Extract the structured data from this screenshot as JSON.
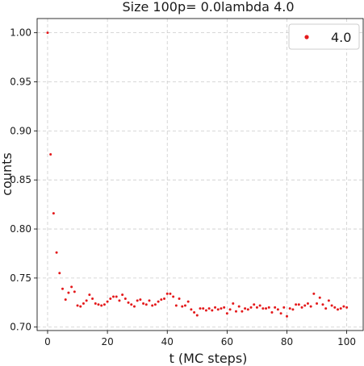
{
  "chart_data": {
    "type": "scatter",
    "title": "Size 100p= 0.0lambda 4.0",
    "xlabel": "t (MC steps)",
    "ylabel": "counts",
    "xlim": [
      -3.5,
      105.5
    ],
    "ylim": [
      0.6965,
      1.0145
    ],
    "xticks": [
      0,
      20,
      40,
      60,
      80,
      100
    ],
    "yticks": [
      0.7,
      0.75,
      0.8,
      0.85,
      0.9,
      0.95,
      1.0
    ],
    "ytick_labels": [
      "0.70",
      "0.75",
      "0.80",
      "0.85",
      "0.90",
      "0.95",
      "1.00"
    ],
    "grid": true,
    "legend": {
      "position": "top-right"
    },
    "series": [
      {
        "name": "4.0",
        "color": "#e41a1c",
        "x": [
          0,
          1,
          2,
          3,
          4,
          5,
          6,
          7,
          8,
          9,
          10,
          11,
          12,
          13,
          14,
          15,
          16,
          17,
          18,
          19,
          20,
          21,
          22,
          23,
          24,
          25,
          26,
          27,
          28,
          29,
          30,
          31,
          32,
          33,
          34,
          35,
          36,
          37,
          38,
          39,
          40,
          41,
          42,
          43,
          44,
          45,
          46,
          47,
          48,
          49,
          50,
          51,
          52,
          53,
          54,
          55,
          56,
          57,
          58,
          59,
          60,
          61,
          62,
          63,
          64,
          65,
          66,
          67,
          68,
          69,
          70,
          71,
          72,
          73,
          74,
          75,
          76,
          77,
          78,
          79,
          80,
          81,
          82,
          83,
          84,
          85,
          86,
          87,
          88,
          89,
          90,
          91,
          92,
          93,
          94,
          95,
          96,
          97,
          98,
          99,
          100
        ],
        "y": [
          1.0,
          0.876,
          0.816,
          0.776,
          0.755,
          0.739,
          0.728,
          0.735,
          0.741,
          0.736,
          0.722,
          0.721,
          0.724,
          0.727,
          0.733,
          0.729,
          0.724,
          0.723,
          0.722,
          0.723,
          0.726,
          0.729,
          0.731,
          0.731,
          0.727,
          0.733,
          0.729,
          0.725,
          0.723,
          0.721,
          0.727,
          0.728,
          0.724,
          0.723,
          0.727,
          0.722,
          0.723,
          0.726,
          0.728,
          0.729,
          0.734,
          0.734,
          0.731,
          0.722,
          0.729,
          0.721,
          0.722,
          0.726,
          0.718,
          0.715,
          0.712,
          0.719,
          0.719,
          0.717,
          0.719,
          0.717,
          0.72,
          0.718,
          0.719,
          0.72,
          0.714,
          0.718,
          0.724,
          0.716,
          0.721,
          0.716,
          0.719,
          0.718,
          0.72,
          0.723,
          0.72,
          0.722,
          0.719,
          0.719,
          0.72,
          0.715,
          0.72,
          0.718,
          0.714,
          0.72,
          0.711,
          0.719,
          0.718,
          0.723,
          0.723,
          0.72,
          0.722,
          0.724,
          0.721,
          0.734,
          0.724,
          0.73,
          0.723,
          0.719,
          0.727,
          0.722,
          0.72,
          0.718,
          0.719,
          0.721,
          0.72
        ]
      }
    ]
  }
}
